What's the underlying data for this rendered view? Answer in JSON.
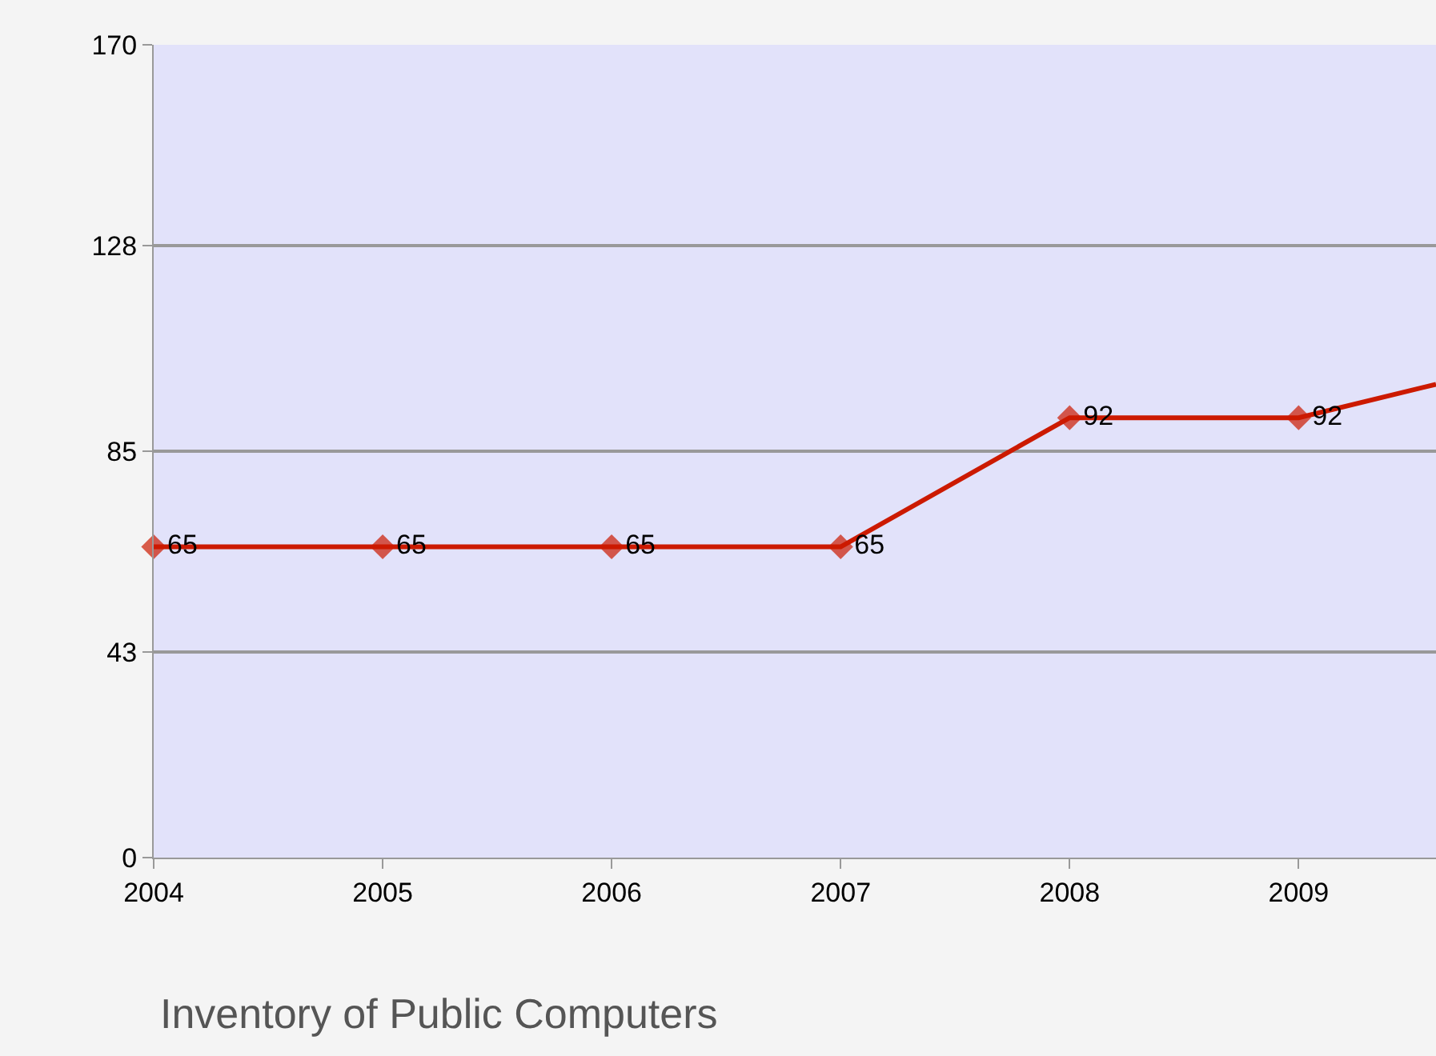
{
  "chart_data": {
    "type": "line",
    "title": "Inventory of Public Computers",
    "x": [
      2004,
      2005,
      2006,
      2007,
      2008,
      2009,
      2009.6
    ],
    "series": [
      {
        "color": "#cc1a00",
        "values": [
          65,
          65,
          65,
          65,
          92,
          92,
          99
        ],
        "value_labels": [
          "65",
          "65",
          "65",
          "65",
          "92",
          "92",
          null
        ]
      }
    ],
    "xlim": [
      2004,
      2009.6
    ],
    "xticks": [
      2004,
      2005,
      2006,
      2007,
      2008,
      2009
    ],
    "ylim": [
      0,
      170
    ],
    "yticks": [
      0,
      43,
      85,
      128,
      170
    ],
    "grid": "y",
    "marker": "diamond",
    "line_style": "solid"
  }
}
